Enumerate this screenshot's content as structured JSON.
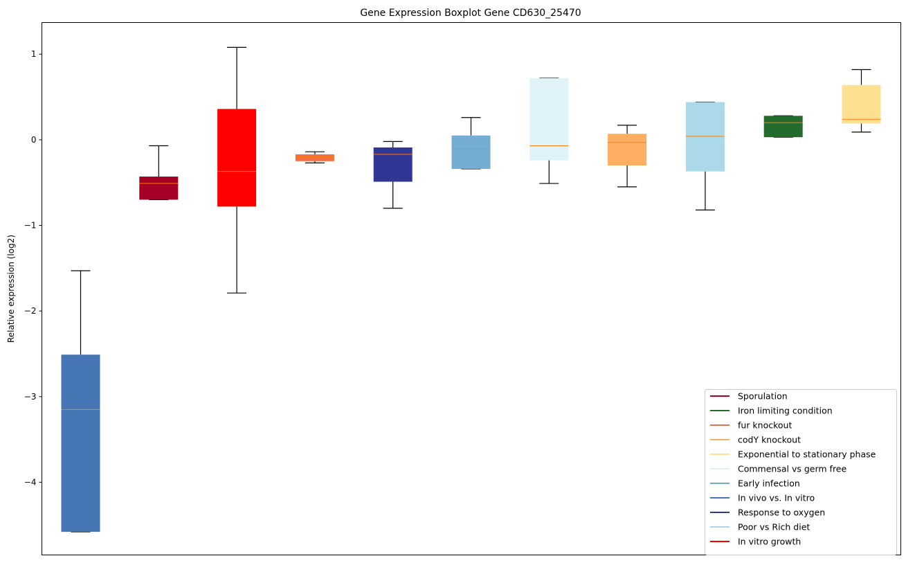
{
  "chart_data": {
    "type": "boxplot",
    "title": "Gene Expression Boxplot Gene CD630_25470",
    "xlabel": "",
    "ylabel": "Relative expression (log2)",
    "ylim": [
      -4.85,
      1.37
    ],
    "yticks": [
      1,
      0,
      -1,
      -2,
      -3,
      -4
    ],
    "ytick_labels": [
      "1",
      "0",
      "−1",
      "−2",
      "−3",
      "−4"
    ],
    "grid": false,
    "legend_position": "bottom-right",
    "median_color": "#ff7f0e",
    "boxes": [
      {
        "name": "In vivo vs. In vitro",
        "color": "#4575b4",
        "whisker_low": -4.58,
        "q1": -4.58,
        "median": -3.15,
        "q3": -2.51,
        "whisker_high": -1.53
      },
      {
        "name": "Sporulation",
        "color": "#a50026",
        "whisker_low": -0.7,
        "q1": -0.7,
        "median": -0.51,
        "q3": -0.43,
        "whisker_high": -0.07
      },
      {
        "name": "In vitro growth",
        "color": "#ff0000",
        "whisker_low": -1.79,
        "q1": -0.78,
        "median": -0.37,
        "q3": 0.36,
        "whisker_high": 1.08
      },
      {
        "name": "fur knockout",
        "color": "#f46d43",
        "whisker_low": -0.27,
        "q1": -0.25,
        "median": -0.2,
        "q3": -0.17,
        "whisker_high": -0.14
      },
      {
        "name": "Response to oxygen",
        "color": "#313695",
        "whisker_low": -0.8,
        "q1": -0.49,
        "median": -0.17,
        "q3": -0.09,
        "whisker_high": -0.02
      },
      {
        "name": "Early infection",
        "color": "#74add1",
        "whisker_low": -0.34,
        "q1": -0.34,
        "median": -0.11,
        "q3": 0.05,
        "whisker_high": 0.26
      },
      {
        "name": "Commensal vs germ free",
        "color": "#e0f3f8",
        "whisker_low": -0.51,
        "q1": -0.24,
        "median": -0.07,
        "q3": 0.72,
        "whisker_high": 0.72
      },
      {
        "name": "codY knockout",
        "color": "#fdae61",
        "whisker_low": -0.55,
        "q1": -0.3,
        "median": -0.03,
        "q3": 0.07,
        "whisker_high": 0.17
      },
      {
        "name": "Poor vs Rich diet",
        "color": "#abd9e9",
        "whisker_low": -0.82,
        "q1": -0.37,
        "median": 0.04,
        "q3": 0.44,
        "whisker_high": 0.44
      },
      {
        "name": "Iron limiting condition",
        "color": "#246b2e",
        "whisker_low": 0.03,
        "q1": 0.03,
        "median": 0.2,
        "q3": 0.28,
        "whisker_high": 0.28
      },
      {
        "name": "Exponential to stationary phase",
        "color": "#fee090",
        "whisker_low": 0.09,
        "q1": 0.19,
        "median": 0.24,
        "q3": 0.64,
        "whisker_high": 0.82
      }
    ],
    "legend": [
      {
        "label": "Sporulation",
        "color": "#a50026"
      },
      {
        "label": "Iron limiting condition",
        "color": "#246b2e"
      },
      {
        "label": "fur knockout",
        "color": "#f46d43"
      },
      {
        "label": "codY knockout",
        "color": "#fdae61"
      },
      {
        "label": "Exponential to stationary phase",
        "color": "#fee090"
      },
      {
        "label": "Commensal vs germ free",
        "color": "#e0f3f8"
      },
      {
        "label": "Early infection",
        "color": "#74add1"
      },
      {
        "label": "In vivo vs. In vitro",
        "color": "#4575b4"
      },
      {
        "label": "Response to oxygen",
        "color": "#313695"
      },
      {
        "label": "Poor vs Rich diet",
        "color": "#abd9e9"
      },
      {
        "label": "In vitro growth",
        "color": "#ff0000"
      }
    ]
  }
}
